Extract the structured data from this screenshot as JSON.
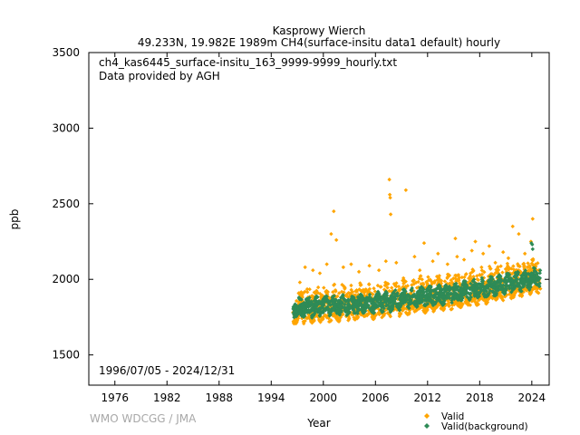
{
  "chart_data": {
    "type": "scatter",
    "title": "Kasprowy Wierch",
    "subtitle": "49.233N, 19.982E 1989m    CH4(surface-insitu data1 default) hourly",
    "file_label": "ch4_kas6445_surface-insitu_163_9999-9999_hourly.txt",
    "provider_label": "Data provided by AGH",
    "period_label": "1996/07/05 - 2024/12/31",
    "xlabel": "Year",
    "ylabel": "ppb",
    "credit": "WMO WDCGG / JMA",
    "xlim": [
      1973,
      2026
    ],
    "ylim": [
      1300,
      3500
    ],
    "x_ticks": [
      1976,
      1982,
      1988,
      1994,
      2000,
      2006,
      2012,
      2018,
      2024
    ],
    "y_ticks": [
      1500,
      2000,
      2500,
      3000,
      3500
    ],
    "grid": false,
    "legend_position": "bottom-right",
    "series": [
      {
        "name": "Valid",
        "color": "#ffa500",
        "marker": "diamond",
        "baseline": [
          [
            1996.5,
            1800
          ],
          [
            2000,
            1815
          ],
          [
            2004,
            1825
          ],
          [
            2008,
            1850
          ],
          [
            2012,
            1880
          ],
          [
            2016,
            1910
          ],
          [
            2020,
            1950
          ],
          [
            2024.99,
            2010
          ]
        ],
        "spread": [
          -80,
          130
        ],
        "spikes": [
          [
            1997.3,
            1980
          ],
          [
            1997.9,
            2080
          ],
          [
            1998.8,
            2060
          ],
          [
            1999.6,
            2040
          ],
          [
            2000.4,
            2100
          ],
          [
            2000.9,
            2300
          ],
          [
            2001.2,
            2450
          ],
          [
            2001.5,
            2260
          ],
          [
            2002.3,
            2080
          ],
          [
            2003.2,
            2100
          ],
          [
            2004.1,
            2050
          ],
          [
            2005.3,
            2090
          ],
          [
            2006.4,
            2060
          ],
          [
            2007.2,
            2120
          ],
          [
            2007.6,
            2660
          ],
          [
            2007.65,
            2560
          ],
          [
            2007.7,
            2540
          ],
          [
            2007.75,
            2430
          ],
          [
            2008.4,
            2110
          ],
          [
            2009.5,
            2590
          ],
          [
            2010.5,
            2150
          ],
          [
            2011.1,
            2060
          ],
          [
            2011.6,
            2240
          ],
          [
            2012.6,
            2120
          ],
          [
            2013.2,
            2170
          ],
          [
            2014.3,
            2100
          ],
          [
            2015.2,
            2270
          ],
          [
            2015.4,
            2150
          ],
          [
            2016.2,
            2130
          ],
          [
            2017.1,
            2190
          ],
          [
            2017.5,
            2250
          ],
          [
            2018.4,
            2170
          ],
          [
            2019.1,
            2220
          ],
          [
            2019.8,
            2110
          ],
          [
            2020.7,
            2180
          ],
          [
            2021.3,
            2140
          ],
          [
            2021.8,
            2350
          ],
          [
            2022.5,
            2300
          ],
          [
            2023.2,
            2170
          ],
          [
            2023.9,
            2250
          ],
          [
            2024.1,
            2400
          ]
        ]
      },
      {
        "name": "Valid(background)",
        "color": "#2e8b57",
        "marker": "diamond",
        "baseline": [
          [
            1996.5,
            1800
          ],
          [
            2000,
            1815
          ],
          [
            2004,
            1825
          ],
          [
            2008,
            1850
          ],
          [
            2012,
            1880
          ],
          [
            2016,
            1910
          ],
          [
            2020,
            1950
          ],
          [
            2024.99,
            2010
          ]
        ],
        "spread": [
          -45,
          60
        ],
        "spikes": [
          [
            2023.95,
            2240
          ],
          [
            2024.05,
            2230
          ],
          [
            2024.1,
            2200
          ]
        ]
      }
    ]
  }
}
